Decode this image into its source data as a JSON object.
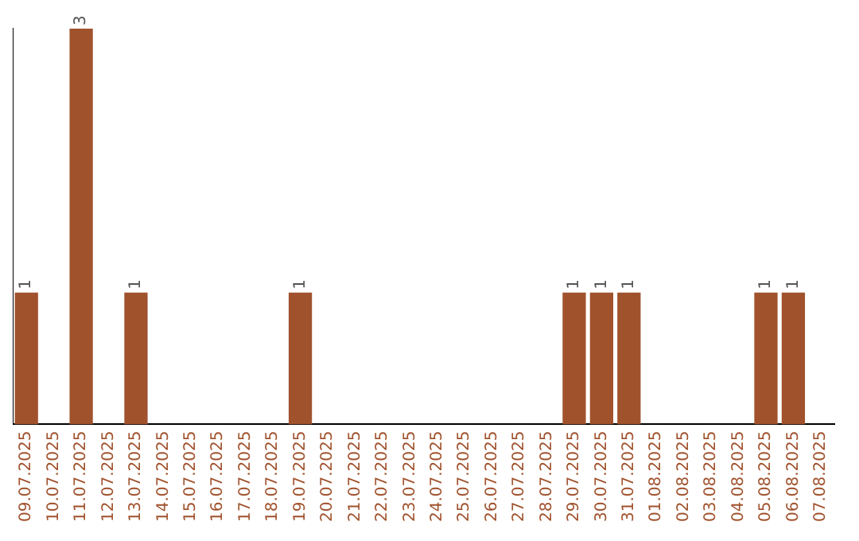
{
  "chart_data": {
    "type": "bar",
    "categories": [
      "09.07.2025",
      "10.07.2025",
      "11.07.2025",
      "12.07.2025",
      "13.07.2025",
      "14.07.2025",
      "15.07.2025",
      "16.07.2025",
      "17.07.2025",
      "18.07.2025",
      "19.07.2025",
      "20.07.2025",
      "21.07.2025",
      "22.07.2025",
      "23.07.2025",
      "24.07.2025",
      "25.07.2025",
      "26.07.2025",
      "27.07.2025",
      "28.07.2025",
      "29.07.2025",
      "30.07.2025",
      "31.07.2025",
      "01.08.2025",
      "02.08.2025",
      "03.08.2025",
      "04.08.2025",
      "05.08.2025",
      "06.08.2025",
      "07.08.2025"
    ],
    "values": [
      1,
      0,
      3,
      0,
      1,
      0,
      0,
      0,
      0,
      0,
      1,
      0,
      0,
      0,
      0,
      0,
      0,
      0,
      0,
      0,
      1,
      1,
      1,
      0,
      0,
      0,
      0,
      1,
      1,
      0
    ],
    "value_labels": [
      "1",
      null,
      "3",
      null,
      "1",
      null,
      null,
      null,
      null,
      null,
      "1",
      null,
      null,
      null,
      null,
      null,
      null,
      null,
      null,
      null,
      "1",
      "1",
      "1",
      null,
      null,
      null,
      null,
      "1",
      "1",
      null
    ],
    "color": "#a0522d",
    "grid": false,
    "legend": false
  }
}
